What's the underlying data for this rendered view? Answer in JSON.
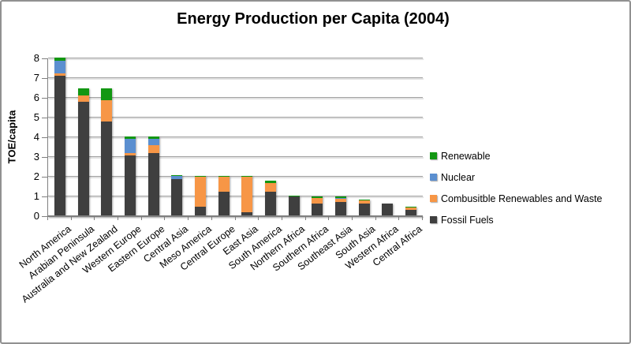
{
  "chart_data": {
    "type": "bar",
    "stacked": true,
    "title": "Energy Production per Capita (2004)",
    "ylabel": "TOE/capita",
    "xlabel": "",
    "ylim": [
      0,
      8
    ],
    "yticks": [
      0,
      1,
      2,
      3,
      4,
      5,
      6,
      7,
      8
    ],
    "grid": true,
    "legend_position": "right",
    "categories": [
      "North America",
      "Arabian Peninsula",
      "Australia and New Zealand",
      "Western Europe",
      "Eastern Europe",
      "Central Asia",
      "Meso America",
      "Central Europe",
      "East Asia",
      "South America",
      "Northern Africa",
      "Southern Africa",
      "Southeast Asia",
      "South Asia",
      "Western Africa",
      "Central Africa"
    ],
    "series": [
      {
        "name": "Fossil Fuels",
        "color": "#3F3F3F",
        "values": [
          7.1,
          5.75,
          4.75,
          3.05,
          3.15,
          1.85,
          0.45,
          1.2,
          0.15,
          1.2,
          0.95,
          0.6,
          0.7,
          0.6,
          0.6,
          0.3
        ]
      },
      {
        "name": "Combusitble Renewables and Waste",
        "color": "#F79646",
        "values": [
          0.1,
          0.35,
          1.1,
          0.1,
          0.4,
          0,
          1.5,
          0.75,
          1.8,
          0.45,
          0,
          0.3,
          0.15,
          0.15,
          0,
          0.1
        ]
      },
      {
        "name": "Nuclear",
        "color": "#5B8FD0",
        "values": [
          0.65,
          0,
          0,
          0.75,
          0.35,
          0.15,
          0,
          0,
          0,
          0,
          0,
          0,
          0.05,
          0,
          0,
          0
        ]
      },
      {
        "name": "Renewable",
        "color": "#129712",
        "values": [
          0.15,
          0.35,
          0.6,
          0.1,
          0.1,
          0.05,
          0.05,
          0.05,
          0.05,
          0.1,
          0.05,
          0.05,
          0.05,
          0.05,
          0,
          0.05
        ]
      }
    ],
    "legend_order": [
      "Renewable",
      "Nuclear",
      "Combusitble Renewables and Waste",
      "Fossil Fuels"
    ],
    "totals": [
      8.0,
      6.45,
      6.45,
      4.0,
      4.0,
      2.05,
      2.0,
      2.0,
      2.0,
      1.75,
      1.0,
      0.95,
      0.95,
      0.8,
      0.6,
      0.45
    ]
  }
}
